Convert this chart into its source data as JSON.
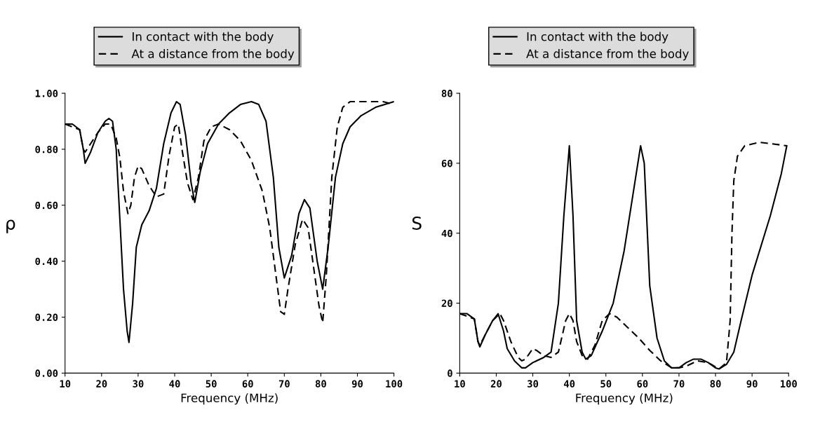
{
  "chart_data": [
    {
      "type": "line",
      "xlabel": "Frequency (MHz)",
      "ylabel": "ρ",
      "xlim": [
        10,
        100
      ],
      "xticks": [
        10,
        20,
        30,
        40,
        50,
        60,
        70,
        80,
        90,
        100
      ],
      "ylim": [
        0,
        1
      ],
      "yticks": [
        {
          "value": 0,
          "label": "0.00"
        },
        {
          "value": 0.2,
          "label": "0.20"
        },
        {
          "value": 0.4,
          "label": "0.40"
        },
        {
          "value": 0.6,
          "label": "0.60"
        },
        {
          "value": 0.8,
          "label": "0.80"
        },
        {
          "value": 1,
          "label": "1.00"
        }
      ],
      "legend": "top",
      "grid": false,
      "series": [
        {
          "name": "In contact with the body",
          "color": "#000000",
          "line_style": "solid",
          "x": [
            10,
            12,
            14,
            15,
            15.5,
            17,
            19,
            21,
            22,
            23,
            24,
            25,
            26,
            27,
            27.5,
            28.5,
            29.5,
            31,
            33,
            35,
            37,
            39,
            40.5,
            41.5,
            43,
            44.5,
            45.5,
            47,
            49,
            52,
            55,
            58,
            61,
            63,
            65,
            67,
            68.5,
            70,
            72,
            74,
            75.5,
            77,
            79,
            80.5,
            82,
            84,
            86,
            88,
            91,
            95,
            100
          ],
          "values": [
            0.89,
            0.89,
            0.87,
            0.8,
            0.75,
            0.79,
            0.86,
            0.9,
            0.91,
            0.9,
            0.8,
            0.55,
            0.3,
            0.15,
            0.11,
            0.25,
            0.45,
            0.53,
            0.58,
            0.66,
            0.82,
            0.93,
            0.97,
            0.96,
            0.85,
            0.68,
            0.61,
            0.72,
            0.82,
            0.89,
            0.93,
            0.96,
            0.97,
            0.96,
            0.9,
            0.7,
            0.45,
            0.34,
            0.42,
            0.57,
            0.62,
            0.59,
            0.4,
            0.3,
            0.45,
            0.7,
            0.82,
            0.88,
            0.92,
            0.95,
            0.97
          ]
        },
        {
          "name": "At a distance from the body",
          "color": "#000000",
          "line_style": "dashed",
          "x": [
            10,
            14,
            15,
            15.5,
            17,
            19,
            21,
            22.5,
            24,
            25,
            26,
            27.2,
            28,
            29,
            30,
            31,
            33,
            35,
            37,
            38.5,
            40,
            41,
            42,
            43.5,
            45,
            46.5,
            48,
            50,
            52,
            55,
            58,
            61,
            64,
            66,
            68,
            69,
            70,
            71,
            73,
            75,
            76.5,
            78,
            79.5,
            80.5,
            81.5,
            83,
            84.5,
            86,
            88,
            92,
            97,
            100
          ],
          "values": [
            0.89,
            0.87,
            0.8,
            0.79,
            0.82,
            0.86,
            0.89,
            0.89,
            0.84,
            0.77,
            0.65,
            0.57,
            0.6,
            0.7,
            0.74,
            0.73,
            0.67,
            0.63,
            0.64,
            0.78,
            0.88,
            0.89,
            0.8,
            0.68,
            0.62,
            0.7,
            0.83,
            0.88,
            0.89,
            0.87,
            0.83,
            0.76,
            0.65,
            0.52,
            0.32,
            0.22,
            0.21,
            0.3,
            0.46,
            0.55,
            0.52,
            0.38,
            0.24,
            0.18,
            0.35,
            0.7,
            0.88,
            0.95,
            0.97,
            0.97,
            0.97,
            0.96
          ]
        }
      ]
    },
    {
      "type": "line",
      "xlabel": "Frequency (MHz)",
      "ylabel": "S",
      "xlim": [
        10,
        100
      ],
      "xticks": [
        10,
        20,
        30,
        40,
        50,
        60,
        70,
        80,
        90,
        100
      ],
      "ylim": [
        0,
        80
      ],
      "yticks": [
        0,
        20,
        40,
        60,
        80
      ],
      "legend": "top",
      "grid": false,
      "series": [
        {
          "name": "In contact with the body",
          "color": "#000000",
          "line_style": "solid",
          "x": [
            10,
            12,
            14,
            15,
            15.5,
            17,
            19,
            20.5,
            22,
            23,
            25,
            27,
            28,
            30,
            33,
            35,
            37,
            38.5,
            40,
            41,
            42,
            43.5,
            44.5,
            46,
            49,
            52,
            55,
            58,
            59.5,
            60.5,
            62,
            64,
            66,
            68,
            70,
            72,
            74,
            76,
            78,
            80,
            81,
            83,
            85,
            87,
            90,
            95,
            98,
            99.5
          ],
          "values": [
            17,
            17,
            15.5,
            9,
            7.5,
            11,
            15,
            17,
            12,
            7,
            3.5,
            1.5,
            1.5,
            3,
            4.5,
            6,
            20,
            45,
            65,
            45,
            15,
            6,
            4,
            5,
            12,
            20,
            35,
            55,
            65,
            60,
            25,
            10,
            3.5,
            1.5,
            1.5,
            3,
            4,
            4,
            3,
            1.5,
            1.2,
            2.5,
            6,
            15,
            28,
            45,
            57,
            65
          ]
        },
        {
          "name": "At a distance from the body",
          "color": "#000000",
          "line_style": "dashed",
          "x": [
            10,
            14,
            15,
            15.5,
            17,
            19,
            21,
            22,
            24,
            26,
            27,
            28,
            30,
            31,
            33,
            35,
            37,
            39,
            40,
            41,
            42,
            43.5,
            45,
            47,
            49,
            51,
            53,
            56,
            59,
            62,
            65,
            68,
            70,
            72,
            75,
            78,
            81,
            83,
            84,
            84.5,
            85,
            86,
            88,
            92,
            99.5
          ],
          "values": [
            17,
            15.5,
            9,
            8,
            11,
            15,
            17,
            15,
            9,
            4.5,
            3.5,
            4,
            7,
            6.5,
            5,
            4.5,
            6,
            15,
            17,
            15,
            9,
            5,
            4,
            8,
            15,
            17,
            16,
            13,
            10,
            6.5,
            3.5,
            1.5,
            1.5,
            2,
            3.5,
            3,
            1.2,
            3,
            15,
            40,
            55,
            62,
            65,
            66,
            65
          ]
        }
      ]
    }
  ]
}
